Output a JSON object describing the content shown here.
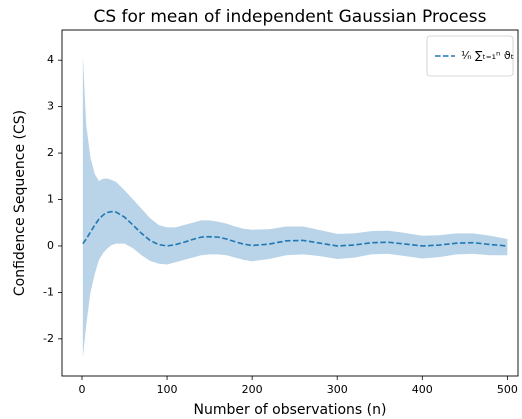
{
  "chart_data": {
    "type": "line",
    "title": "CS for mean of independent Gaussian Process",
    "xlabel": "Number of observations (n)",
    "ylabel": "Confidence Sequence (CS)",
    "x": [
      1,
      5,
      10,
      15,
      20,
      25,
      30,
      35,
      40,
      50,
      60,
      70,
      80,
      90,
      100,
      110,
      120,
      130,
      140,
      150,
      160,
      170,
      180,
      190,
      200,
      220,
      240,
      260,
      280,
      300,
      320,
      340,
      360,
      380,
      400,
      420,
      440,
      460,
      480,
      500
    ],
    "series": [
      {
        "name": "¹⁄ₙ ∑ₜ₌₁ⁿ ϑₜ",
        "color": "#1f77b4",
        "dash": true,
        "values": [
          0.05,
          0.15,
          0.3,
          0.45,
          0.58,
          0.67,
          0.72,
          0.74,
          0.73,
          0.62,
          0.45,
          0.27,
          0.12,
          0.03,
          0.0,
          0.03,
          0.08,
          0.14,
          0.19,
          0.2,
          0.19,
          0.15,
          0.09,
          0.04,
          0.01,
          0.04,
          0.11,
          0.12,
          0.06,
          0.0,
          0.02,
          0.07,
          0.08,
          0.04,
          0.0,
          0.02,
          0.06,
          0.07,
          0.03,
          0.0
        ]
      }
    ],
    "band": {
      "color": "#b9d4e8",
      "upper": [
        4.1,
        2.6,
        1.9,
        1.55,
        1.4,
        1.45,
        1.45,
        1.42,
        1.38,
        1.2,
        1.0,
        0.8,
        0.6,
        0.45,
        0.4,
        0.4,
        0.45,
        0.5,
        0.55,
        0.55,
        0.52,
        0.48,
        0.42,
        0.37,
        0.35,
        0.36,
        0.42,
        0.42,
        0.34,
        0.26,
        0.27,
        0.32,
        0.33,
        0.28,
        0.22,
        0.23,
        0.27,
        0.27,
        0.22,
        0.15
      ],
      "lower": [
        -2.4,
        -1.7,
        -1.0,
        -0.6,
        -0.3,
        -0.15,
        -0.05,
        0.02,
        0.05,
        0.05,
        -0.05,
        -0.2,
        -0.32,
        -0.38,
        -0.4,
        -0.35,
        -0.3,
        -0.25,
        -0.2,
        -0.18,
        -0.18,
        -0.2,
        -0.25,
        -0.3,
        -0.33,
        -0.28,
        -0.2,
        -0.18,
        -0.22,
        -0.28,
        -0.25,
        -0.18,
        -0.17,
        -0.22,
        -0.27,
        -0.24,
        -0.18,
        -0.17,
        -0.2,
        -0.2
      ]
    },
    "xlim": [
      -23.5,
      512.5
    ],
    "xticks": [
      0,
      100,
      200,
      300,
      400,
      500
    ],
    "ylim": [
      -2.8,
      4.65
    ],
    "yticks": [
      -2,
      -1,
      0,
      1,
      2,
      3,
      4
    ],
    "legend": "upper right"
  }
}
